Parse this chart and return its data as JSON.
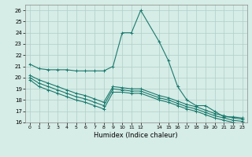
{
  "xlabel": "Humidex (Indice chaleur)",
  "ylabel": "",
  "xlim": [
    -0.5,
    23.5
  ],
  "ylim": [
    16,
    26.5
  ],
  "yticks": [
    16,
    17,
    18,
    19,
    20,
    21,
    22,
    23,
    24,
    25,
    26
  ],
  "xtick_positions": [
    0,
    1,
    2,
    3,
    4,
    5,
    6,
    7,
    8,
    9,
    10,
    11,
    12,
    14,
    15,
    16,
    17,
    18,
    19,
    20,
    21,
    22,
    23
  ],
  "xtick_labels": [
    "0",
    "1",
    "2",
    "3",
    "4",
    "5",
    "6",
    "7",
    "8",
    "9",
    "10",
    "11",
    "12",
    "14",
    "15",
    "16",
    "17",
    "18",
    "19",
    "20",
    "21",
    "22",
    "23"
  ],
  "background_color": "#d6ece6",
  "grid_color": "#b0cfc8",
  "line_color": "#1a7a6e",
  "lines": [
    {
      "x": [
        0,
        1,
        2,
        3,
        4,
        5,
        6,
        7,
        8,
        9,
        10,
        11,
        12,
        14,
        15,
        16,
        17,
        18,
        19,
        20,
        21,
        22,
        23
      ],
      "y": [
        21.2,
        20.8,
        20.7,
        20.7,
        20.7,
        20.6,
        20.6,
        20.6,
        20.6,
        21.0,
        24.0,
        24.0,
        26.0,
        23.2,
        21.5,
        19.2,
        18.0,
        17.5,
        17.5,
        17.0,
        16.5,
        16.5,
        16.4
      ]
    },
    {
      "x": [
        0,
        1,
        2,
        3,
        4,
        5,
        6,
        7,
        8,
        9,
        10,
        11,
        12,
        14,
        15,
        16,
        17,
        18,
        19,
        20,
        21,
        22,
        23
      ],
      "y": [
        20.2,
        19.8,
        19.5,
        19.2,
        18.9,
        18.6,
        18.4,
        18.1,
        17.8,
        19.2,
        19.1,
        19.0,
        19.0,
        18.4,
        18.2,
        17.9,
        17.6,
        17.4,
        17.1,
        16.8,
        16.6,
        16.4,
        16.3
      ]
    },
    {
      "x": [
        0,
        1,
        2,
        3,
        4,
        5,
        6,
        7,
        8,
        9,
        10,
        11,
        12,
        14,
        15,
        16,
        17,
        18,
        19,
        20,
        21,
        22,
        23
      ],
      "y": [
        20.0,
        19.5,
        19.2,
        18.9,
        18.6,
        18.3,
        18.1,
        17.8,
        17.5,
        19.0,
        18.9,
        18.8,
        18.8,
        18.2,
        18.0,
        17.7,
        17.4,
        17.2,
        16.9,
        16.6,
        16.4,
        16.2,
        16.1
      ]
    },
    {
      "x": [
        0,
        1,
        2,
        3,
        4,
        5,
        6,
        7,
        8,
        9,
        10,
        11,
        12,
        14,
        15,
        16,
        17,
        18,
        19,
        20,
        21,
        22,
        23
      ],
      "y": [
        19.8,
        19.2,
        18.9,
        18.6,
        18.3,
        18.0,
        17.8,
        17.5,
        17.2,
        18.7,
        18.7,
        18.6,
        18.6,
        18.0,
        17.8,
        17.5,
        17.2,
        17.0,
        16.7,
        16.4,
        16.2,
        16.0,
        15.9
      ]
    }
  ]
}
